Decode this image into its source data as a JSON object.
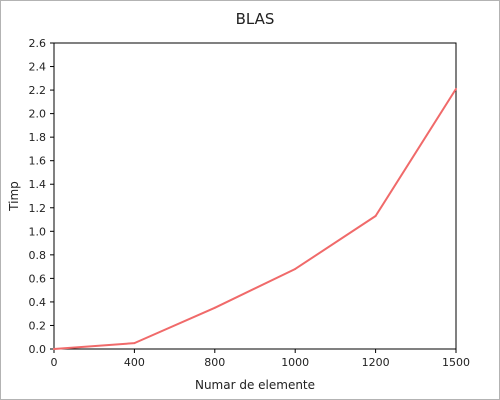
{
  "chart_data": {
    "type": "line",
    "title": "BLAS",
    "xlabel": "Numar de elemente",
    "ylabel": "Timp",
    "x_categories": [
      "0",
      "400",
      "800",
      "1000",
      "1200",
      "1500"
    ],
    "y_ticks": [
      "0.0",
      "0.2",
      "0.4",
      "0.6",
      "0.8",
      "1.0",
      "1.2",
      "1.4",
      "1.6",
      "1.8",
      "2.0",
      "2.2",
      "2.4",
      "2.6"
    ],
    "ylim": [
      0,
      2.6
    ],
    "grid": false,
    "legend": "none",
    "series": [
      {
        "color": "#f06a6a",
        "values": [
          0.0,
          0.05,
          0.35,
          0.68,
          1.13,
          2.21
        ]
      }
    ]
  }
}
